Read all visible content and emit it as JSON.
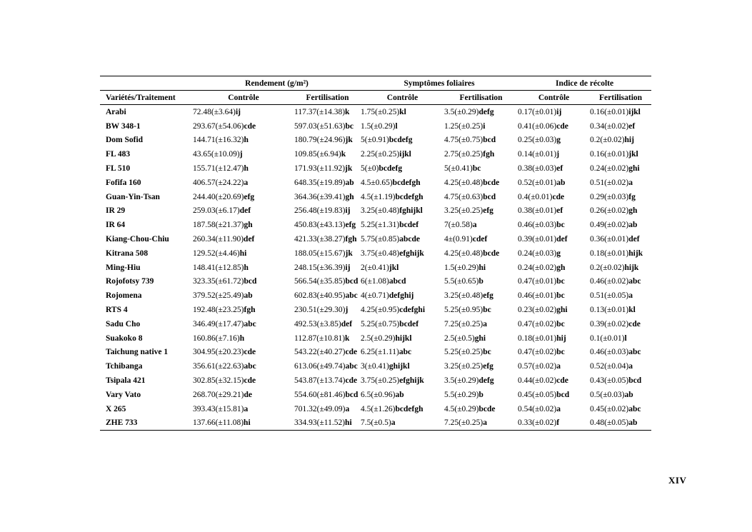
{
  "page": {
    "number": "XIV"
  },
  "table": {
    "group_headers": [
      "Rendement (g/m²)",
      "Symptômes foliaires",
      "Indice de récolte"
    ],
    "column_headers": [
      "Variétés/Traitement",
      "Contrôle",
      "Fertilisation",
      "Contrôle",
      "Fertilisation",
      "Contrôle",
      "Fertilisation"
    ],
    "rows": [
      {
        "name": "Arabi",
        "cells": [
          {
            "v": "72.48(±3.64)",
            "g": "ij"
          },
          {
            "v": "117.37(±14.38)",
            "g": "k"
          },
          {
            "v": "1.75(±0.25)",
            "g": "kl"
          },
          {
            "v": "3.5(±0.29)",
            "g": "defg"
          },
          {
            "v": "0.17(±0.01)",
            "g": "ij"
          },
          {
            "v": "0.16(±0.01)",
            "g": "ijkl"
          }
        ]
      },
      {
        "name": "BW 348-1",
        "cells": [
          {
            "v": "293.67(±54.06)",
            "g": "cde"
          },
          {
            "v": "597.03(±51.63)",
            "g": "bc"
          },
          {
            "v": "1.5(±0.29)",
            "g": "l"
          },
          {
            "v": "1.25(±0.25)",
            "g": "i"
          },
          {
            "v": "0.41(±0.06)",
            "g": "cde"
          },
          {
            "v": "0.34(±0.02)",
            "g": "ef"
          }
        ]
      },
      {
        "name": "Dom Sofid",
        "cells": [
          {
            "v": "144.71(±16.32)",
            "g": "h"
          },
          {
            "v": "180.79(±24.96)",
            "g": "jk"
          },
          {
            "v": "5(±0.91)",
            "g": "bcdefg"
          },
          {
            "v": "4.75(±0.75)",
            "g": "bcd"
          },
          {
            "v": "0.25(±0.03)",
            "g": "g"
          },
          {
            "v": "0.2(±0.02)",
            "g": "hij"
          }
        ]
      },
      {
        "name": "FL 483",
        "cells": [
          {
            "v": "43.65(±10.09)",
            "g": "j"
          },
          {
            "v": "109.85(±6.94)",
            "g": "k"
          },
          {
            "v": "2.25(±0.25)",
            "g": "ijkl"
          },
          {
            "v": "2.75(±0.25)",
            "g": "fgh"
          },
          {
            "v": "0.14(±0.01)",
            "g": "j"
          },
          {
            "v": "0.16(±0.01)",
            "g": "jkl"
          }
        ]
      },
      {
        "name": "FL 510",
        "cells": [
          {
            "v": "155.71(±12.47)",
            "g": "h"
          },
          {
            "v": "171.93(±11.92)",
            "g": "jk"
          },
          {
            "v": "5(±0)",
            "g": "bcdefg"
          },
          {
            "v": "5(±0.41)",
            "g": "bc"
          },
          {
            "v": "0.38(±0.03)",
            "g": "ef"
          },
          {
            "v": "0.24(±0.02)",
            "g": "ghi"
          }
        ]
      },
      {
        "name": "Fofifa 160",
        "cells": [
          {
            "v": "406.57(±24.22)",
            "g": "a"
          },
          {
            "v": "648.35(±19.89)",
            "g": "ab"
          },
          {
            "v": "4.5±0.65)",
            "g": "bcdefgh"
          },
          {
            "v": "4.25(±0.48)",
            "g": "bcde"
          },
          {
            "v": "0.52(±0.01)",
            "g": "ab"
          },
          {
            "v": "0.51(±0.02)",
            "g": "a"
          }
        ]
      },
      {
        "name": "Guan-Yin-Tsan",
        "cells": [
          {
            "v": "244.40(±20.69)",
            "g": "efg"
          },
          {
            "v": "364.36(±39.41)",
            "g": "gh"
          },
          {
            "v": "4.5(±1.19)",
            "g": "bcdefgh"
          },
          {
            "v": "4.75(±0.63)",
            "g": "bcd"
          },
          {
            "v": "0.4(±0.01)",
            "g": "cde"
          },
          {
            "v": "0.29(±0.03)",
            "g": "fg"
          }
        ]
      },
      {
        "name": "IR 29",
        "cells": [
          {
            "v": "259.03(±6.17)",
            "g": "def"
          },
          {
            "v": "256.48(±19.83)",
            "g": "ij"
          },
          {
            "v": "3.25(±0.48)",
            "g": "fghijkl"
          },
          {
            "v": "3.25(±0.25)",
            "g": "efg"
          },
          {
            "v": "0.38(±0.01)",
            "g": "ef"
          },
          {
            "v": "0.26(±0.02)",
            "g": "gh"
          }
        ]
      },
      {
        "name": "IR 64",
        "cells": [
          {
            "v": "187.58(±21.37)",
            "g": "gh"
          },
          {
            "v": "450.83(±43.13)",
            "g": "efg"
          },
          {
            "v": "5.25(±1.31)",
            "g": "bcdef"
          },
          {
            "v": "7(±0.58)",
            "g": "a"
          },
          {
            "v": "0.46(±0.03)",
            "g": "bc"
          },
          {
            "v": "0.49(±0.02)",
            "g": "ab"
          }
        ]
      },
      {
        "name": "Kiang-Chou-Chiu",
        "cells": [
          {
            "v": "260.34(±11.90)",
            "g": "def"
          },
          {
            "v": "421.33(±38.27)",
            "g": "fgh"
          },
          {
            "v": "5.75(±0.85)",
            "g": "abcde"
          },
          {
            "v": "4±(0.91)",
            "g": "cdef"
          },
          {
            "v": "0.39(±0.01)",
            "g": "def"
          },
          {
            "v": "0.36(±0.01)",
            "g": "def"
          }
        ]
      },
      {
        "name": "Kitrana 508",
        "cells": [
          {
            "v": "129.52(±4.46)",
            "g": "hi"
          },
          {
            "v": "188.05(±15.67)",
            "g": "jk"
          },
          {
            "v": "3.75(±0.48)",
            "g": "efghijk"
          },
          {
            "v": "4.25(±0.48)",
            "g": "bcde"
          },
          {
            "v": "0.24(±0.03)",
            "g": "g"
          },
          {
            "v": "0.18(±0.01)",
            "g": "hijk"
          }
        ]
      },
      {
        "name": "Ming-Hiu",
        "cells": [
          {
            "v": "148.41(±12.85)",
            "g": "h"
          },
          {
            "v": "248.15(±36.39)",
            "g": "ij"
          },
          {
            "v": "2(±0.41)",
            "g": "jkl"
          },
          {
            "v": "1.5(±0.29)",
            "g": "hi"
          },
          {
            "v": "0.24(±0.02)",
            "g": "gh"
          },
          {
            "v": "0.2(±0.02)",
            "g": "hijk"
          }
        ]
      },
      {
        "name": "Rojofotsy 739",
        "cells": [
          {
            "v": "323.35(±61.72)",
            "g": "bcd"
          },
          {
            "v": "566.54(±35.85)",
            "g": "bcd"
          },
          {
            "v": "6(±1.08)",
            "g": "abcd"
          },
          {
            "v": "5.5(±0.65)",
            "g": "b"
          },
          {
            "v": "0.47(±0.01)",
            "g": "bc"
          },
          {
            "v": "0.46(±0.02)",
            "g": "abc"
          }
        ]
      },
      {
        "name": "Rojomena",
        "cells": [
          {
            "v": "379.52(±25.49)",
            "g": "ab"
          },
          {
            "v": "602.83(±40.95)",
            "g": "abc"
          },
          {
            "v": "4(±0.71)",
            "g": "defghij"
          },
          {
            "v": "3.25(±0.48)",
            "g": "efg"
          },
          {
            "v": "0.46(±0.01)",
            "g": "bc"
          },
          {
            "v": "0.51(±0.05)",
            "g": "a"
          }
        ]
      },
      {
        "name": "RTS 4",
        "cells": [
          {
            "v": "192.48(±23.25)",
            "g": "fgh"
          },
          {
            "v": "230.51(±29.30)",
            "g": "j"
          },
          {
            "v": "4.25(±0.95)",
            "g": "cdefghi"
          },
          {
            "v": "5.25(±0.95)",
            "g": "bc"
          },
          {
            "v": "0.23(±0.02)",
            "g": "ghi"
          },
          {
            "v": "0.13(±0.01)",
            "g": "kl"
          }
        ]
      },
      {
        "name": "Sadu Cho",
        "cells": [
          {
            "v": "346.49(±17.47)",
            "g": "abc"
          },
          {
            "v": "492.53(±3.85)",
            "g": "def"
          },
          {
            "v": "5.25(±0.75)",
            "g": "bcdef"
          },
          {
            "v": "7.25(±0.25)",
            "g": "a"
          },
          {
            "v": "0.47(±0.02)",
            "g": "bc"
          },
          {
            "v": "0.39(±0.02)",
            "g": "cde"
          }
        ]
      },
      {
        "name": "Suakoko 8",
        "cells": [
          {
            "v": "160.86(±7.16)",
            "g": "h"
          },
          {
            "v": "112.87(±10.81)",
            "g": "k"
          },
          {
            "v": "2.5(±0.29)",
            "g": "hijkl"
          },
          {
            "v": "2.5(±0.5)",
            "g": "ghi"
          },
          {
            "v": "0.18(±0.01)",
            "g": "hij"
          },
          {
            "v": "0.1(±0.01)",
            "g": "l"
          }
        ]
      },
      {
        "name": "Taichung native 1",
        "cells": [
          {
            "v": "304.95(±20.23)",
            "g": "cde"
          },
          {
            "v": "543.22(±40.27)",
            "g": "cde"
          },
          {
            "v": "6.25(±1.11)",
            "g": "abc"
          },
          {
            "v": "5.25(±0.25)",
            "g": "bc"
          },
          {
            "v": "0.47(±0.02)",
            "g": "bc"
          },
          {
            "v": "0.46(±0.03)",
            "g": "abc"
          }
        ]
      },
      {
        "name": "Tchibanga",
        "cells": [
          {
            "v": "356.61(±22.63)",
            "g": "abc"
          },
          {
            "v": "613.06(±49.74)",
            "g": "abc"
          },
          {
            "v": "3(±0.41)",
            "g": "ghijkl"
          },
          {
            "v": "3.25(±0.25)",
            "g": "efg"
          },
          {
            "v": "0.57(±0.02)",
            "g": "a"
          },
          {
            "v": "0.52(±0.04)",
            "g": "a"
          }
        ]
      },
      {
        "name": "Tsipala 421",
        "cells": [
          {
            "v": "302.85(±32.15)",
            "g": "cde"
          },
          {
            "v": "543.87(±13.74)",
            "g": "cde"
          },
          {
            "v": "3.75(±0.25)",
            "g": "efghijk"
          },
          {
            "v": "3.5(±0.29)",
            "g": "defg"
          },
          {
            "v": "0.44(±0.02)",
            "g": "cde"
          },
          {
            "v": "0.43(±0.05)",
            "g": "bcd"
          }
        ]
      },
      {
        "name": "Vary Vato",
        "cells": [
          {
            "v": "268.70(±29.21)",
            "g": "de"
          },
          {
            "v": "554.60(±81.46)",
            "g": "bcd"
          },
          {
            "v": "6.5(±0.96)",
            "g": "ab"
          },
          {
            "v": "5.5(±0.29)",
            "g": "b"
          },
          {
            "v": "0.45(±0.05)",
            "g": "bcd"
          },
          {
            "v": "0.5(±0.03)",
            "g": "ab"
          }
        ]
      },
      {
        "name": "X 265",
        "cells": [
          {
            "v": "393.43(±15.81)",
            "g": "a"
          },
          {
            "v": "701.32(±49.09)",
            "g": "a"
          },
          {
            "v": "4.5(±1.26)",
            "g": "bcdefgh"
          },
          {
            "v": "4.5(±0.29)",
            "g": "bcde"
          },
          {
            "v": "0.54(±0.02)",
            "g": "a"
          },
          {
            "v": "0.45(±0.02)",
            "g": "abc"
          }
        ]
      },
      {
        "name": "ZHE 733",
        "cells": [
          {
            "v": "137.66(±11.08)",
            "g": "hi"
          },
          {
            "v": "334.93(±11.52)",
            "g": "hi"
          },
          {
            "v": "7.5(±0.5)",
            "g": "a"
          },
          {
            "v": "7.25(±0.25)",
            "g": "a"
          },
          {
            "v": "0.33(±0.02)",
            "g": "f"
          },
          {
            "v": "0.48(±0.05)",
            "g": "ab"
          }
        ]
      }
    ]
  }
}
